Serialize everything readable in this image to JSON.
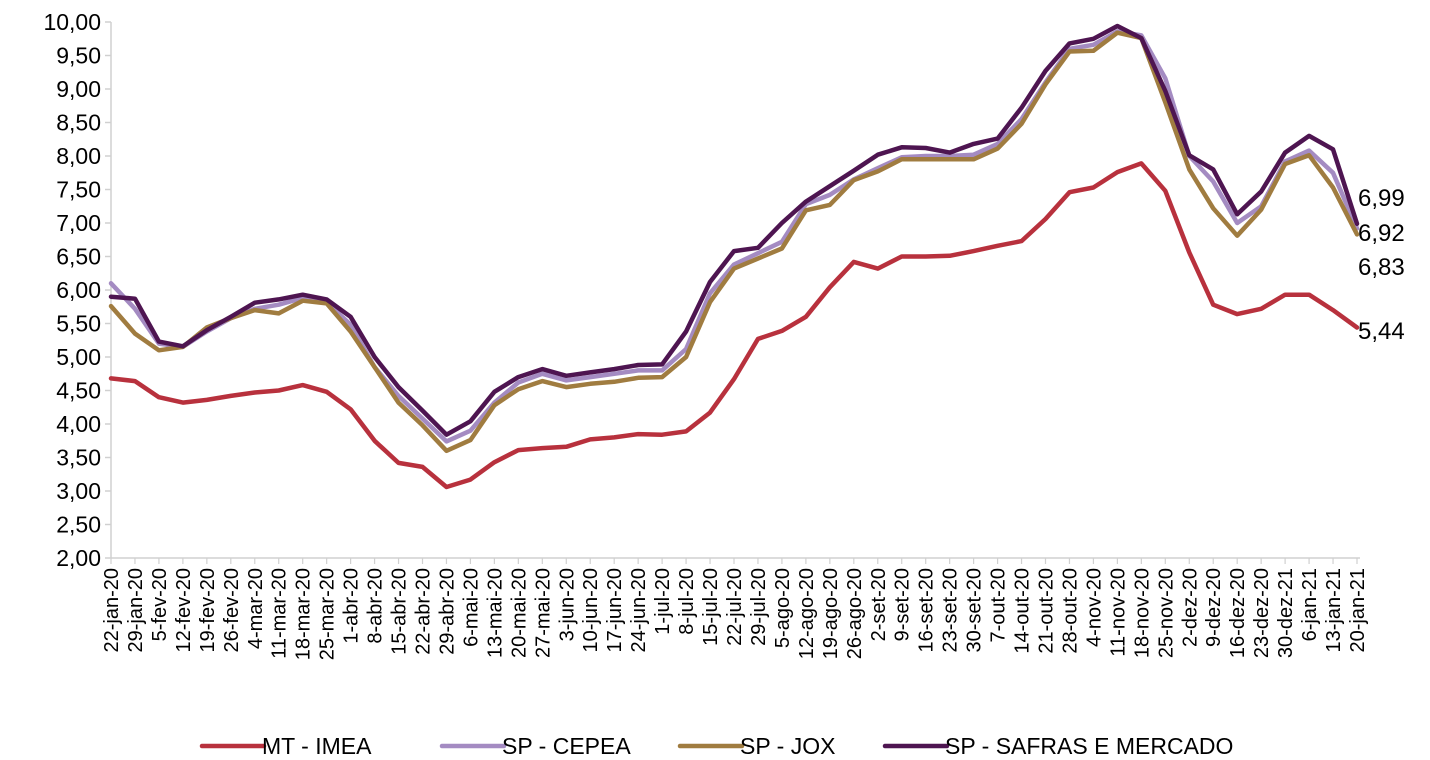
{
  "chart_data": {
    "type": "line",
    "title": "",
    "xlabel": "",
    "ylabel": "",
    "ylim": [
      2.0,
      10.0
    ],
    "y_ticks": [
      "2,00",
      "2,50",
      "3,00",
      "3,50",
      "4,00",
      "4,50",
      "5,00",
      "5,50",
      "6,00",
      "6,50",
      "7,00",
      "7,50",
      "8,00",
      "8,50",
      "9,00",
      "9,50",
      "10,00"
    ],
    "grid": false,
    "legend_position": "bottom",
    "categories": [
      "22-jan-20",
      "29-jan-20",
      "5-fev-20",
      "12-fev-20",
      "19-fev-20",
      "26-fev-20",
      "4-mar-20",
      "11-mar-20",
      "18-mar-20",
      "25-mar-20",
      "1-abr-20",
      "8-abr-20",
      "15-abr-20",
      "22-abr-20",
      "29-abr-20",
      "6-mai-20",
      "13-mai-20",
      "20-mai-20",
      "27-mai-20",
      "3-jun-20",
      "10-jun-20",
      "17-jun-20",
      "24-jun-20",
      "1-jul-20",
      "8-jul-20",
      "15-jul-20",
      "22-jul-20",
      "29-jul-20",
      "5-ago-20",
      "12-ago-20",
      "19-ago-20",
      "26-ago-20",
      "2-set-20",
      "9-set-20",
      "16-set-20",
      "23-set-20",
      "30-set-20",
      "7-out-20",
      "14-out-20",
      "21-out-20",
      "28-out-20",
      "4-nov-20",
      "11-nov-20",
      "18-nov-20",
      "25-nov-20",
      "2-dez-20",
      "9-dez-20",
      "16-dez-20",
      "23-dez-20",
      "30-dez-21",
      "6-jan-21",
      "13-jan-21",
      "20-jan-21"
    ],
    "series": [
      {
        "name": "MT - IMEA",
        "color": "#B8313D",
        "end_label": "5,44",
        "values": [
          4.68,
          4.64,
          4.4,
          4.32,
          4.36,
          4.42,
          4.47,
          4.5,
          4.58,
          4.48,
          4.22,
          3.75,
          3.42,
          3.36,
          3.06,
          3.17,
          3.43,
          3.61,
          3.64,
          3.66,
          3.77,
          3.8,
          3.85,
          3.84,
          3.89,
          4.17,
          4.67,
          5.27,
          5.39,
          5.6,
          6.04,
          6.42,
          6.32,
          6.5,
          6.5,
          6.51,
          6.58,
          6.66,
          6.73,
          7.06,
          7.46,
          7.53,
          7.76,
          7.89,
          7.48,
          6.56,
          5.78,
          5.64,
          5.72,
          5.93,
          5.93,
          5.7,
          5.44
        ]
      },
      {
        "name": "SP - CEPEA",
        "color": "#A48BC2",
        "end_label": "6,92",
        "values": [
          6.1,
          5.72,
          5.2,
          5.15,
          5.38,
          5.58,
          5.72,
          5.78,
          5.88,
          5.82,
          5.48,
          4.85,
          4.42,
          4.08,
          3.74,
          3.9,
          4.32,
          4.62,
          4.75,
          4.65,
          4.7,
          4.75,
          4.8,
          4.8,
          5.12,
          5.95,
          6.38,
          6.55,
          6.72,
          7.28,
          7.42,
          7.65,
          7.82,
          7.98,
          8.0,
          8.0,
          8.02,
          8.18,
          8.55,
          9.1,
          9.6,
          9.66,
          9.86,
          9.8,
          9.16,
          8.0,
          7.62,
          7.0,
          7.25,
          7.92,
          8.08,
          7.75,
          6.92
        ]
      },
      {
        "name": "SP - JOX",
        "color": "#A07C40",
        "end_label": "6,83",
        "values": [
          5.76,
          5.35,
          5.1,
          5.15,
          5.44,
          5.58,
          5.7,
          5.65,
          5.84,
          5.8,
          5.38,
          4.85,
          4.32,
          3.98,
          3.6,
          3.76,
          4.28,
          4.52,
          4.64,
          4.55,
          4.6,
          4.63,
          4.69,
          4.7,
          5.0,
          5.82,
          6.32,
          6.47,
          6.62,
          7.19,
          7.27,
          7.64,
          7.77,
          7.95,
          7.95,
          7.95,
          7.95,
          8.11,
          8.48,
          9.07,
          9.56,
          9.57,
          9.84,
          9.76,
          8.8,
          7.8,
          7.22,
          6.81,
          7.2,
          7.88,
          8.01,
          7.53,
          6.83
        ]
      },
      {
        "name": "SP - SAFRAS E MERCADO",
        "color": "#4E1551",
        "end_label": "6,99",
        "values": [
          5.9,
          5.87,
          5.23,
          5.16,
          5.4,
          5.6,
          5.81,
          5.86,
          5.93,
          5.86,
          5.6,
          5.0,
          4.55,
          4.2,
          3.84,
          4.04,
          4.48,
          4.7,
          4.82,
          4.72,
          4.77,
          4.82,
          4.88,
          4.89,
          5.38,
          6.12,
          6.58,
          6.63,
          7.0,
          7.32,
          7.55,
          7.78,
          8.02,
          8.13,
          8.12,
          8.05,
          8.18,
          8.26,
          8.72,
          9.27,
          9.68,
          9.75,
          9.94,
          9.76,
          8.97,
          8.01,
          7.8,
          7.13,
          7.47,
          8.05,
          8.3,
          8.1,
          6.99
        ]
      }
    ]
  }
}
